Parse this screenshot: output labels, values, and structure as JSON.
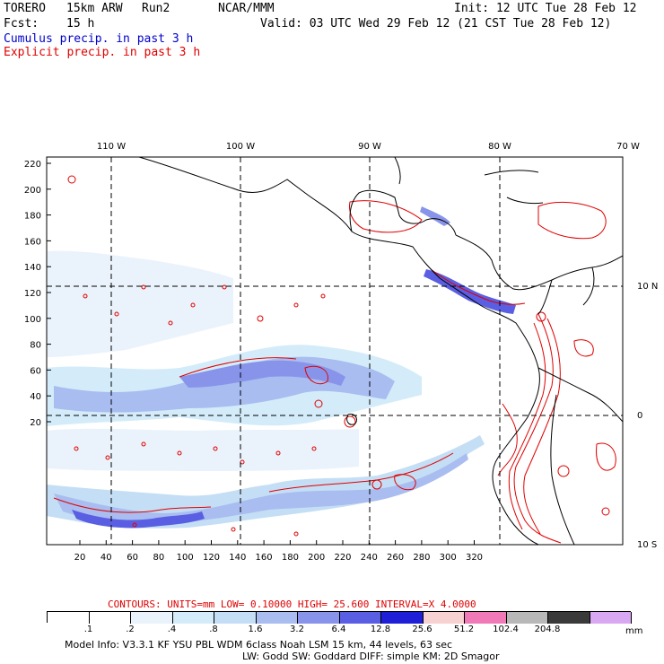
{
  "header": {
    "model": "TORERO",
    "resolution": "15km ARW",
    "run": "Run2",
    "org": "NCAR/MMM",
    "init": "Init: 12 UTC Tue 28 Feb 12",
    "fcst_label": "Fcst:",
    "fcst_value": "15 h",
    "valid": "Valid: 03 UTC Wed 29 Feb 12 (21 CST Tue 28 Feb 12)",
    "legend_cumulus": "Cumulus precip. in past 3 h",
    "legend_explicit": "Explicit precip. in past 3 h",
    "colors": {
      "cumulus": "#0000cc",
      "explicit": "#e00000"
    }
  },
  "axes": {
    "top_lon": [
      "110 W",
      "100 W",
      "90 W",
      "80 W",
      "70 W"
    ],
    "right_lat": [
      "10 N",
      "0",
      "10 S"
    ],
    "left_y": [
      "220",
      "200",
      "180",
      "160",
      "140",
      "120",
      "100",
      "80",
      "60",
      "40",
      "20"
    ],
    "bottom_x": [
      "20",
      "40",
      "60",
      "80",
      "100",
      "120",
      "140",
      "160",
      "180",
      "200",
      "220",
      "240",
      "260",
      "280",
      "300",
      "320"
    ]
  },
  "contours": "CONTOURS:  UNITS=mm  LOW= 0.10000      HIGH=  25.600      INTERVAL=X  4.0000",
  "colorbar": {
    "labels": [
      ".1",
      ".2",
      ".4",
      ".8",
      "1.6",
      "3.2",
      "6.4",
      "12.8",
      "25.6",
      "51.2",
      "102.4",
      "204.8"
    ],
    "unit": "mm",
    "colors": [
      "#ffffff",
      "#ffffff",
      "#eaf3fb",
      "#d4ecfa",
      "#c4def5",
      "#a9bdf0",
      "#8894ea",
      "#5a5ee2",
      "#1f1fd8",
      "#f7d2d2",
      "#f07ab8",
      "#b8b8b8",
      "#3a3a3a",
      "#d9a8f2"
    ]
  },
  "footer": {
    "line1": "Model Info: V3.3.1    KF      YSU PBL   WDM 6class  Noah LSM  15 km,    44 levels,    63 sec",
    "line2": "LW: Godd SW: Goddard DIFF: simple KM: 2D Smagor"
  }
}
